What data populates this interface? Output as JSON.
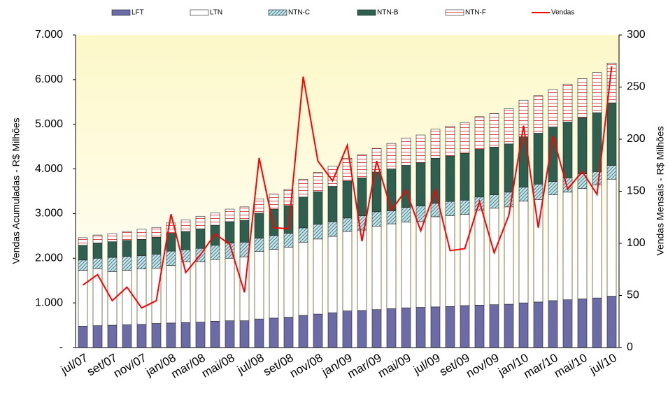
{
  "chart_data": {
    "type": "stacked-bar-line",
    "ylabel": "Vendas Acumuladas - R$ Milhões",
    "y2label": "Vendas Mensais - R$ Milhões",
    "categories": [
      "jul/07",
      null,
      "set/07",
      null,
      "nov/07",
      null,
      "jan/08",
      null,
      "mar/08",
      null,
      "mai/08",
      null,
      "jul/08",
      null,
      "set/08",
      null,
      "nov/08",
      null,
      "jan/09",
      null,
      "mar/09",
      null,
      "mai/09",
      null,
      "jul/09",
      null,
      "set/09",
      null,
      "nov/09",
      null,
      "jan/10",
      null,
      "mar/10",
      null,
      "mai/10",
      null,
      "jul/10"
    ],
    "ylim": [
      0,
      7000
    ],
    "yticks": [
      {
        "value": 0,
        "label": "-"
      },
      {
        "value": 1000,
        "label": "1.000"
      },
      {
        "value": 2000,
        "label": "2.000"
      },
      {
        "value": 3000,
        "label": "3.000"
      },
      {
        "value": 4000,
        "label": "4.000"
      },
      {
        "value": 5000,
        "label": "5.000"
      },
      {
        "value": 6000,
        "label": "6.000"
      },
      {
        "value": 7000,
        "label": "7.000"
      }
    ],
    "y2lim": [
      0,
      300
    ],
    "y2ticks": [
      0,
      50,
      100,
      150,
      200,
      250,
      300
    ],
    "series": [
      {
        "name": "LFT",
        "color": "#6b6ba8",
        "values": [
          480,
          490,
          500,
          510,
          520,
          540,
          550,
          560,
          570,
          590,
          600,
          600,
          640,
          660,
          680,
          720,
          750,
          780,
          820,
          830,
          850,
          870,
          890,
          900,
          910,
          920,
          940,
          950,
          960,
          970,
          1000,
          1020,
          1050,
          1070,
          1090,
          1110,
          1150
        ]
      },
      {
        "name": "LTN",
        "color": "#ffffff",
        "values": [
          1250,
          1280,
          1200,
          1220,
          1240,
          1240,
          1290,
          1360,
          1350,
          1380,
          1400,
          1430,
          1510,
          1540,
          1570,
          1640,
          1680,
          1710,
          1780,
          1800,
          1870,
          1900,
          1920,
          1920,
          2020,
          2030,
          2040,
          2130,
          2160,
          2180,
          2280,
          2290,
          2370,
          2410,
          2470,
          2530,
          2620
        ]
      },
      {
        "name": "NTN-C",
        "color": "#c6e3e8",
        "hatch": "diagonal",
        "values": [
          230,
          230,
          320,
          310,
          300,
          310,
          320,
          270,
          300,
          320,
          340,
          330,
          300,
          310,
          310,
          320,
          330,
          330,
          300,
          320,
          320,
          290,
          330,
          350,
          300,
          320,
          320,
          290,
          300,
          330,
          310,
          350,
          300,
          320,
          330,
          300,
          310
        ]
      },
      {
        "name": "NTN-B",
        "color": "#2f5f4f",
        "values": [
          330,
          340,
          350,
          360,
          360,
          380,
          400,
          410,
          440,
          450,
          480,
          490,
          560,
          590,
          620,
          690,
          730,
          790,
          830,
          850,
          890,
          940,
          940,
          970,
          1010,
          1020,
          1050,
          1070,
          1070,
          1080,
          1130,
          1140,
          1220,
          1250,
          1260,
          1320,
          1400
        ]
      },
      {
        "name": "NTN-F",
        "color": "#e05050",
        "hatch": "horizontal",
        "values": [
          170,
          180,
          180,
          200,
          230,
          220,
          230,
          260,
          280,
          280,
          280,
          300,
          320,
          340,
          370,
          400,
          430,
          450,
          510,
          520,
          530,
          570,
          610,
          620,
          650,
          670,
          690,
          730,
          750,
          790,
          820,
          840,
          840,
          850,
          870,
          900,
          890
        ]
      },
      {
        "name": "Vendas",
        "color": "#ff0000",
        "type": "line",
        "axis": "y2",
        "values": [
          60,
          70,
          45,
          58,
          38,
          45,
          128,
          72,
          89,
          109,
          99,
          53,
          182,
          115,
          114,
          260,
          179,
          160,
          194,
          102,
          179,
          132,
          151,
          112,
          151,
          93,
          95,
          140,
          91,
          127,
          213,
          115,
          203,
          152,
          169,
          147,
          270
        ]
      }
    ]
  }
}
